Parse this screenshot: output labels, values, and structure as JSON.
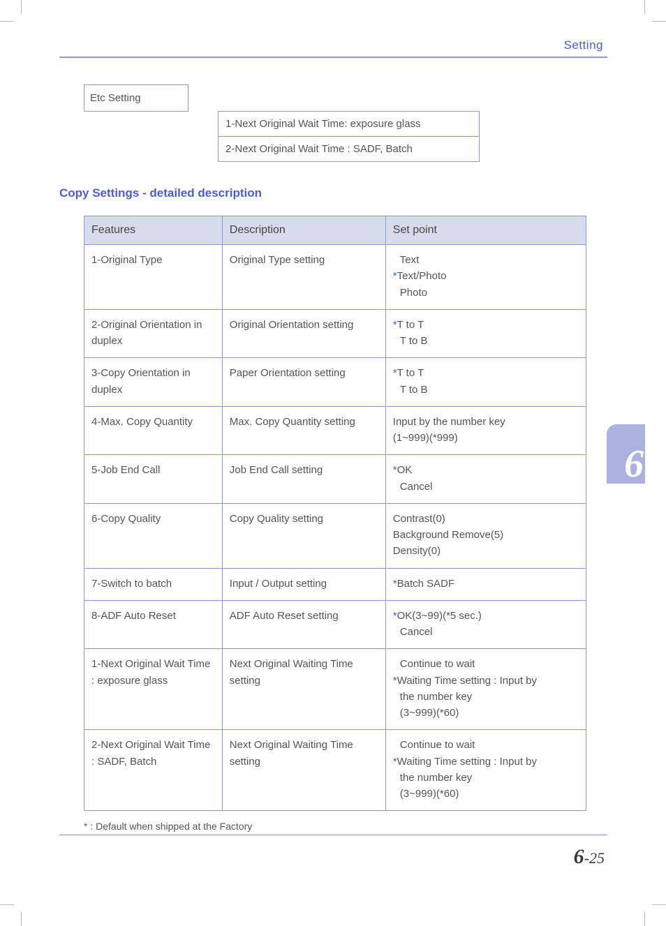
{
  "header": {
    "label": "Setting"
  },
  "top_box": {
    "label": "Etc Setting",
    "items": [
      "1-Next Original Wait Time: exposure glass",
      "2-Next Original Wait Time : SADF, Batch"
    ]
  },
  "section_title": "Copy Settings - detailed description",
  "table": {
    "headers": [
      "Features",
      "Description",
      "Set point"
    ],
    "rows": [
      {
        "feature": "1-Original Type",
        "description": "Original Type setting",
        "setpoint": [
          {
            "text": "Text",
            "star": false,
            "indent": true
          },
          {
            "text": "Text/Photo",
            "star": true,
            "indent": false
          },
          {
            "text": "Photo",
            "star": false,
            "indent": true
          }
        ]
      },
      {
        "feature": "2-Original Orientation in duplex",
        "description": "Original Orientation setting",
        "setpoint": [
          {
            "text": "T to T",
            "star": true,
            "indent": false
          },
          {
            "text": "T to B",
            "star": false,
            "indent": true
          }
        ]
      },
      {
        "feature": "3-Copy Orientation in duplex",
        "description": "Paper Orientation setting",
        "setpoint": [
          {
            "text": "T to T",
            "star": true,
            "indent": false
          },
          {
            "text": "T to B",
            "star": false,
            "indent": true
          }
        ]
      },
      {
        "feature": "4-Max. Copy Quantity",
        "description": "Max. Copy Quantity setting",
        "setpoint": [
          {
            "text": "Input by the number key",
            "star": false,
            "indent": false
          },
          {
            "text": "(1~999)(*999)",
            "star": false,
            "indent": false
          }
        ]
      },
      {
        "feature": "5-Job End Call",
        "description": "Job End Call setting",
        "setpoint": [
          {
            "text": "OK",
            "star": true,
            "indent": false,
            "extra_pad": true
          },
          {
            "text": "Cancel",
            "star": false,
            "indent": true,
            "extra_pad": true
          }
        ]
      },
      {
        "feature": "6-Copy Quality",
        "description": "Copy Quality setting",
        "setpoint": [
          {
            "text": "Contrast(0)",
            "star": false,
            "indent": false
          },
          {
            "text": "Background Remove(5)",
            "star": false,
            "indent": false
          },
          {
            "text": "Density(0)",
            "star": false,
            "indent": false
          }
        ]
      },
      {
        "feature": "7-Switch to batch",
        "description": "Input / Output setting",
        "setpoint": [
          {
            "text": "Batch SADF",
            "star": true,
            "indent": false
          }
        ]
      },
      {
        "feature": "8-ADF Auto Reset",
        "description": "ADF Auto Reset setting",
        "setpoint": [
          {
            "text": "OK(3~99)(*5 sec.)",
            "star": true,
            "indent": false
          },
          {
            "text": "Cancel",
            "star": false,
            "indent": true
          }
        ]
      },
      {
        "feature": "1-Next Original Wait Time : exposure glass",
        "description": "Next Original Waiting Time setting",
        "setpoint": [
          {
            "text": "Continue to wait",
            "star": false,
            "indent": true
          },
          {
            "text": "Waiting Time setting : Input by",
            "star": true,
            "indent": false
          },
          {
            "text": "the number key",
            "star": false,
            "indent": true
          },
          {
            "text": "(3~999)(*60)",
            "star": false,
            "indent": true
          }
        ]
      },
      {
        "feature": "2-Next Original Wait Time : SADF, Batch",
        "description": "Next Original Waiting Time setting",
        "setpoint": [
          {
            "text": "Continue to wait",
            "star": false,
            "indent": true
          },
          {
            "text": "Waiting Time setting : Input by",
            "star": true,
            "indent": false
          },
          {
            "text": "the number key",
            "star": false,
            "indent": true
          },
          {
            "text": "(3~999)(*60)",
            "star": false,
            "indent": true
          }
        ]
      }
    ]
  },
  "footnote": {
    "star": "*",
    "text": " : Default when shipped at the Factory"
  },
  "page_number": {
    "chapter": "6",
    "sep": "-",
    "page": "25"
  },
  "chapter_tab": "6",
  "colors": {
    "accent": "#4a5fcf",
    "rule": "#8e98d6",
    "header_bg": "#d7dced",
    "tab_bg": "#aab2e0",
    "text": "#555555"
  }
}
